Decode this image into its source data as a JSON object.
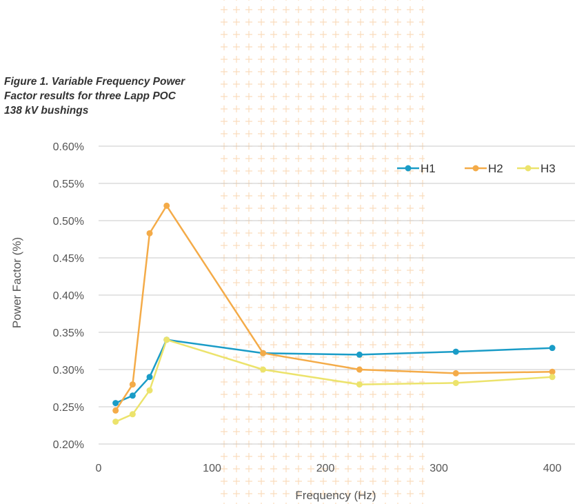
{
  "caption": {
    "line1": "Figure 1. Variable Frequency Power",
    "line2": "Factor results for three Lapp POC",
    "line3": "138 kV bushings"
  },
  "pattern_color": "#f9dcbc",
  "chart_data": {
    "type": "line",
    "xlabel": "Frequency (Hz)",
    "ylabel": "Power Factor (%)",
    "xlim": [
      0,
      420
    ],
    "ylim": [
      0.2,
      0.6
    ],
    "xticks": [
      0,
      100,
      200,
      300,
      400
    ],
    "xtick_labels": [
      "0",
      "100",
      "200",
      "300",
      "400"
    ],
    "yticks": [
      0.2,
      0.25,
      0.3,
      0.35,
      0.4,
      0.45,
      0.5,
      0.55,
      0.6
    ],
    "ytick_labels": [
      "0.20%",
      "0.25%",
      "0.30%",
      "0.35%",
      "0.40%",
      "0.45%",
      "0.50%",
      "0.55%",
      "0.60%"
    ],
    "grid": "horizontal",
    "legend_position": "top-right",
    "series": [
      {
        "name": "H1",
        "color": "#1a9cc7",
        "points": [
          [
            15,
            0.255
          ],
          [
            30,
            0.265
          ],
          [
            45,
            0.29
          ],
          [
            60,
            0.34
          ],
          [
            145,
            0.322
          ],
          [
            230,
            0.32
          ],
          [
            315,
            0.324
          ],
          [
            400,
            0.329
          ]
        ]
      },
      {
        "name": "H2",
        "color": "#f4ab48",
        "points": [
          [
            15,
            0.245
          ],
          [
            30,
            0.28
          ],
          [
            45,
            0.483
          ],
          [
            60,
            0.52
          ],
          [
            145,
            0.322
          ],
          [
            230,
            0.3
          ],
          [
            315,
            0.295
          ],
          [
            400,
            0.297
          ]
        ]
      },
      {
        "name": "H3",
        "color": "#ece36c",
        "points": [
          [
            15,
            0.23
          ],
          [
            30,
            0.24
          ],
          [
            45,
            0.272
          ],
          [
            60,
            0.34
          ],
          [
            145,
            0.3
          ],
          [
            230,
            0.28
          ],
          [
            315,
            0.282
          ],
          [
            400,
            0.29
          ]
        ]
      }
    ]
  }
}
